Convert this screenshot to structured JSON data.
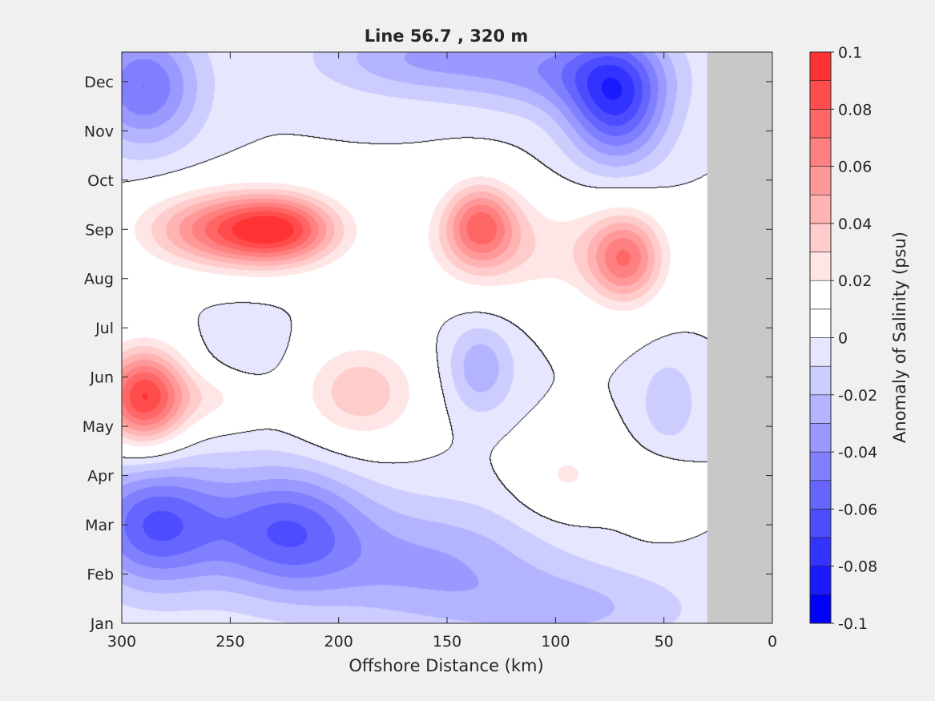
{
  "chart_data": {
    "type": "heatmap",
    "subtype": "filled-contour",
    "title": "Line 56.7 , 320 m",
    "xlabel": "Offshore Distance (km)",
    "ylabel": "",
    "x_ticks": [
      "300",
      "250",
      "200",
      "150",
      "100",
      "50",
      "0"
    ],
    "x_tick_values": [
      300,
      250,
      200,
      150,
      100,
      50,
      0
    ],
    "xlim": [
      300,
      0
    ],
    "y_ticks": [
      "Jan",
      "Feb",
      "Mar",
      "Apr",
      "May",
      "Jun",
      "Jul",
      "Aug",
      "Sep",
      "Oct",
      "Nov",
      "Dec"
    ],
    "ylim_months": [
      0,
      11.6
    ],
    "no_data_region_km": [
      30,
      0
    ],
    "no_data_color": "#c8c8c8",
    "colorbar": {
      "label": "Anomaly of Salinity (psu)",
      "range": [
        -0.1,
        0.1
      ],
      "levels": [
        -0.1,
        -0.09,
        -0.08,
        -0.07,
        -0.06,
        -0.05,
        -0.04,
        -0.03,
        -0.02,
        -0.01,
        0.0,
        0.01,
        0.02,
        0.03,
        0.04,
        0.05,
        0.06,
        0.07,
        0.08,
        0.09,
        0.1
      ],
      "tick_labels": [
        "0.1",
        "0.08",
        "0.06",
        "0.04",
        "0.02",
        "0",
        "-0.02",
        "-0.04",
        "-0.06",
        "-0.08",
        "-0.1"
      ],
      "colors": [
        "#0000ff",
        "#1a1aff",
        "#3333ff",
        "#4d4dff",
        "#6666ff",
        "#8080ff",
        "#9999ff",
        "#b3b3ff",
        "#ccccff",
        "#e6e6ff",
        "#ffffff",
        "#ffffff",
        "#ffe6e6",
        "#ffcccc",
        "#ffb3b3",
        "#ff9999",
        "#ff8080",
        "#ff6666",
        "#ff4d4d",
        "#ff3333",
        "#ff1a1a"
      ]
    },
    "zero_contour_color": "#000000",
    "features": [
      {
        "x": 290,
        "month": 4.6,
        "value": 0.09,
        "sx": 14,
        "sy": 0.7
      },
      {
        "x": 250,
        "month": 8.0,
        "value": 0.07,
        "sx": 28,
        "sy": 0.55
      },
      {
        "x": 225,
        "month": 8.0,
        "value": 0.05,
        "sx": 18,
        "sy": 0.5
      },
      {
        "x": 135,
        "month": 8.1,
        "value": 0.062,
        "sx": 12,
        "sy": 0.6
      },
      {
        "x": 68,
        "month": 7.4,
        "value": 0.058,
        "sx": 12,
        "sy": 0.65
      },
      {
        "x": 110,
        "month": 7.6,
        "value": 0.025,
        "sx": 40,
        "sy": 0.8
      },
      {
        "x": 190,
        "month": 4.7,
        "value": 0.038,
        "sx": 20,
        "sy": 0.75
      },
      {
        "x": 255,
        "month": 4.6,
        "value": 0.02,
        "sx": 15,
        "sy": 0.45
      },
      {
        "x": 95,
        "month": 3.0,
        "value": 0.022,
        "sx": 16,
        "sy": 0.6
      },
      {
        "x": 55,
        "month": 2.6,
        "value": 0.012,
        "sx": 11,
        "sy": 0.5
      },
      {
        "x": 135,
        "month": 5.2,
        "value": -0.028,
        "sx": 11,
        "sy": 0.65
      },
      {
        "x": 48,
        "month": 4.5,
        "value": -0.02,
        "sx": 9,
        "sy": 0.6
      },
      {
        "x": 243,
        "month": 5.5,
        "value": -0.012,
        "sx": 14,
        "sy": 0.55
      },
      {
        "x": 290,
        "month": 10.9,
        "value": -0.05,
        "sx": 18,
        "sy": 0.85
      },
      {
        "x": 160,
        "month": 11.5,
        "value": -0.03,
        "sx": 35,
        "sy": 0.55
      },
      {
        "x": 72,
        "month": 10.6,
        "value": -0.065,
        "sx": 16,
        "sy": 0.9
      },
      {
        "x": 95,
        "month": 11.2,
        "value": -0.03,
        "sx": 30,
        "sy": 0.6
      },
      {
        "x": 285,
        "month": 2.0,
        "value": -0.06,
        "sx": 22,
        "sy": 0.9
      },
      {
        "x": 225,
        "month": 1.9,
        "value": -0.055,
        "sx": 25,
        "sy": 0.9
      },
      {
        "x": 160,
        "month": 1.2,
        "value": -0.03,
        "sx": 40,
        "sy": 0.9
      },
      {
        "x": 90,
        "month": 0.3,
        "value": -0.02,
        "sx": 40,
        "sy": 0.6
      }
    ]
  }
}
